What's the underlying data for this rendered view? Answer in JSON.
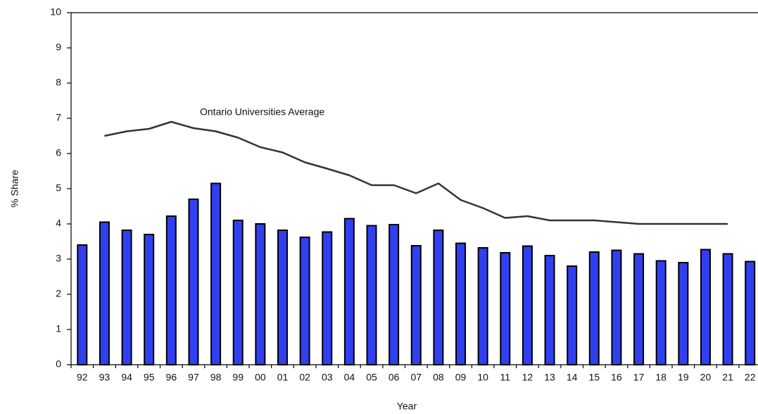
{
  "chart_data": {
    "type": "bar",
    "x_label": "Year",
    "y_label": "% Share",
    "categories": [
      "92",
      "93",
      "94",
      "95",
      "96",
      "97",
      "98",
      "99",
      "00",
      "01",
      "02",
      "03",
      "04",
      "05",
      "06",
      "07",
      "08",
      "09",
      "10",
      "11",
      "12",
      "13",
      "14",
      "15",
      "16",
      "17",
      "18",
      "19",
      "20",
      "21",
      "22"
    ],
    "series": [
      {
        "name": "Share",
        "type": "bar",
        "color": "#3040f0",
        "values": [
          3.4,
          4.05,
          3.82,
          3.7,
          4.22,
          4.7,
          5.15,
          4.1,
          4.0,
          3.82,
          3.62,
          3.77,
          4.15,
          3.95,
          3.98,
          3.38,
          3.82,
          3.45,
          3.32,
          3.18,
          3.37,
          3.1,
          2.8,
          3.2,
          3.25,
          3.15,
          2.95,
          2.9,
          3.27,
          3.15,
          2.93
        ]
      },
      {
        "name": "Ontario Universities Average",
        "type": "line",
        "color": "#333333",
        "values": [
          null,
          6.5,
          6.63,
          6.7,
          6.9,
          6.72,
          6.63,
          6.45,
          6.18,
          6.03,
          5.75,
          5.57,
          5.38,
          5.1,
          5.1,
          4.87,
          5.15,
          4.68,
          4.45,
          4.17,
          4.22,
          4.1,
          4.1,
          4.1,
          4.05,
          4.0,
          4.0,
          4.0,
          4.0,
          4.0,
          null
        ]
      }
    ],
    "ylim": [
      0,
      10
    ],
    "yticks": [
      0,
      1,
      2,
      3,
      4,
      5,
      6,
      7,
      8,
      9,
      10
    ],
    "grid": false
  }
}
